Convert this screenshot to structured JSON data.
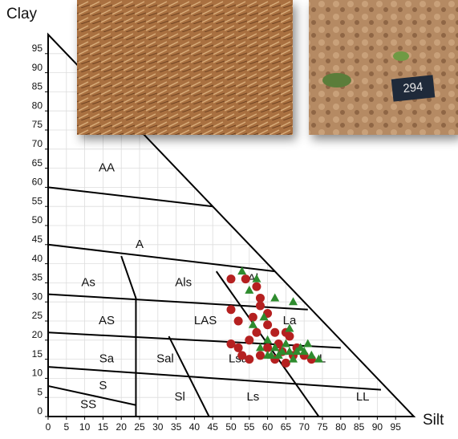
{
  "chart_data": {
    "type": "scatter",
    "x_label": "Silt",
    "y_label": "Clay",
    "xlim": [
      0,
      100
    ],
    "ylim": [
      0,
      100
    ],
    "xticks": [
      0,
      5,
      10,
      15,
      20,
      25,
      30,
      35,
      40,
      45,
      50,
      55,
      60,
      65,
      70,
      75,
      80,
      85,
      90,
      95
    ],
    "yticks": [
      0,
      5,
      10,
      15,
      20,
      25,
      30,
      35,
      40,
      45,
      50,
      55,
      60,
      65,
      70,
      75,
      80,
      85,
      90,
      95
    ],
    "boundaries": [
      {
        "x": [
          0,
          0,
          100,
          0
        ],
        "y": [
          0,
          100,
          0,
          0
        ]
      },
      {
        "x": [
          0,
          45
        ],
        "y": [
          60,
          55
        ]
      },
      {
        "x": [
          0,
          62
        ],
        "y": [
          45,
          38
        ]
      },
      {
        "x": [
          20,
          24,
          24
        ],
        "y": [
          42,
          31,
          0
        ]
      },
      {
        "x": [
          0,
          71
        ],
        "y": [
          32,
          28
        ]
      },
      {
        "x": [
          0,
          80
        ],
        "y": [
          22,
          18
        ]
      },
      {
        "x": [
          0,
          91
        ],
        "y": [
          13,
          7
        ]
      },
      {
        "x": [
          0,
          24
        ],
        "y": [
          8,
          3
        ]
      },
      {
        "x": [
          46,
          74
        ],
        "y": [
          38,
          0
        ]
      },
      {
        "x": [
          33,
          44
        ],
        "y": [
          21,
          0
        ]
      }
    ],
    "zones": [
      {
        "label": "AA",
        "x": 16,
        "y": 65
      },
      {
        "label": "A",
        "x": 25,
        "y": 45
      },
      {
        "label": "As",
        "x": 11,
        "y": 35
      },
      {
        "label": "Als",
        "x": 37,
        "y": 35
      },
      {
        "label": "Al",
        "x": 56,
        "y": 36
      },
      {
        "label": "AS",
        "x": 16,
        "y": 25
      },
      {
        "label": "LAS",
        "x": 43,
        "y": 25
      },
      {
        "label": "La",
        "x": 66,
        "y": 25
      },
      {
        "label": "Sa",
        "x": 16,
        "y": 15
      },
      {
        "label": "Sal",
        "x": 32,
        "y": 15
      },
      {
        "label": "Lsa",
        "x": 52,
        "y": 15
      },
      {
        "label": "L",
        "x": 75,
        "y": 15
      },
      {
        "label": "S",
        "x": 15,
        "y": 8
      },
      {
        "label": "SS",
        "x": 11,
        "y": 3
      },
      {
        "label": "Sl",
        "x": 36,
        "y": 5
      },
      {
        "label": "Ls",
        "x": 56,
        "y": 5
      },
      {
        "label": "LL",
        "x": 86,
        "y": 5
      }
    ],
    "series": [
      {
        "marker": "circle",
        "color": "#b52020",
        "x": [
          50,
          54,
          57,
          58,
          58,
          60,
          56,
          50,
          52,
          50,
          52,
          55,
          57,
          60,
          62,
          65,
          66,
          63,
          60,
          58,
          55,
          67,
          70,
          72,
          62,
          65,
          68,
          53,
          64
        ],
        "values": [
          36,
          36,
          34,
          31,
          29,
          27,
          26,
          28,
          25,
          19,
          18,
          20,
          22,
          24,
          22,
          22,
          21,
          19,
          18,
          16,
          15,
          16,
          16,
          15,
          15,
          14,
          18,
          16,
          17
        ]
      },
      {
        "marker": "triangle",
        "color": "#2e8b2e",
        "x": [
          53,
          57,
          55,
          62,
          67,
          59,
          56,
          60,
          62,
          64,
          66,
          68,
          70,
          72,
          74,
          61,
          63,
          65,
          67,
          69,
          71,
          58,
          60,
          66
        ],
        "values": [
          38,
          36,
          33,
          31,
          30,
          26,
          24,
          20,
          18,
          17,
          17,
          17,
          17,
          16,
          15,
          16,
          16,
          19,
          15,
          18,
          19,
          18,
          16,
          23
        ]
      }
    ]
  },
  "photo_tag": "294"
}
